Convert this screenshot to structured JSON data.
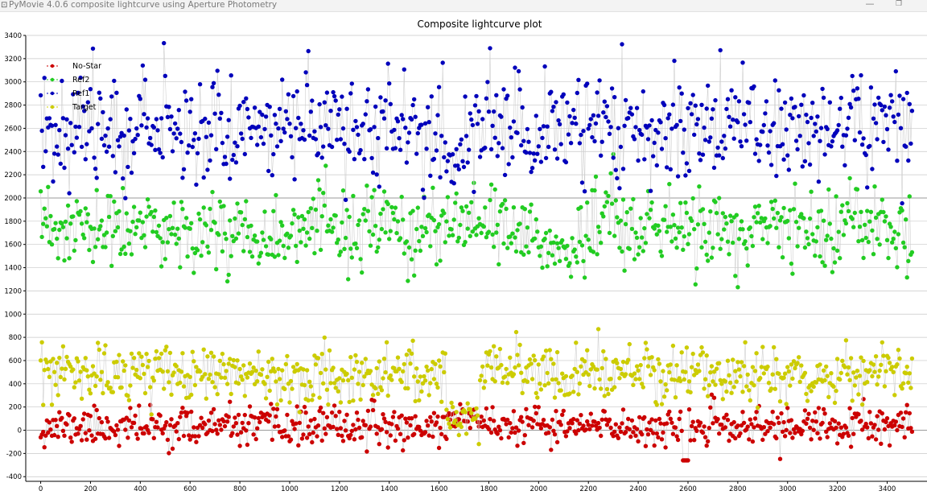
{
  "window": {
    "title": "PyMovie 4.0.6 composite lightcurve using Aperture Photometry",
    "app_icon": "app-icon",
    "minimize_icon": "minimize-icon",
    "maximize_icon": "maximize-icon",
    "minimize_glyph": "—",
    "maximize_glyph": "❐"
  },
  "chart_data": {
    "type": "scatter",
    "title": "Composite lightcurve plot",
    "xlabel": "",
    "ylabel": "",
    "xlim": [
      -60,
      3560
    ],
    "ylim": [
      -440,
      3400
    ],
    "x_ticks": [
      0,
      200,
      400,
      600,
      800,
      1000,
      1200,
      1400,
      1600,
      1800,
      2000,
      2200,
      2400,
      2600,
      2800,
      3000,
      3200,
      3400
    ],
    "y_ticks": [
      -400,
      -200,
      0,
      200,
      400,
      600,
      800,
      1000,
      1200,
      1400,
      1600,
      1800,
      2000,
      2200,
      2400,
      2600,
      2800,
      3000,
      3200,
      3400
    ],
    "grid": true,
    "legend_position": "top-left",
    "point_spacing": 5,
    "series": [
      {
        "name": "No-Star",
        "color": "#cc0000",
        "mean": 30,
        "sd": 80,
        "seed": 11,
        "segments": [
          [
            1640,
            1780,
            110,
            50
          ],
          [
            2580,
            2600,
            -260,
            0
          ]
        ]
      },
      {
        "name": "Ref2",
        "color": "#22cc22",
        "mean": 1720,
        "sd": 170,
        "seed": 23,
        "segments": [
          [
            2000,
            2150,
            1560,
            120
          ],
          [
            2250,
            2320,
            1900,
            140
          ]
        ]
      },
      {
        "name": "Ref1",
        "color": "#0000bb",
        "mean": 2620,
        "sd": 230,
        "seed": 37,
        "segments": [
          [
            1620,
            1700,
            2300,
            120
          ],
          [
            1950,
            2010,
            2450,
            180
          ]
        ]
      },
      {
        "name": "Target",
        "color": "#cccc00",
        "mean": 480,
        "sd": 120,
        "seed": 53,
        "segments": [
          [
            1630,
            1760,
            120,
            70
          ]
        ]
      }
    ],
    "grid_color": "#c8c8c8",
    "zero_line_color": "#9a9a9a",
    "connector_color": "#cfcfcf"
  }
}
